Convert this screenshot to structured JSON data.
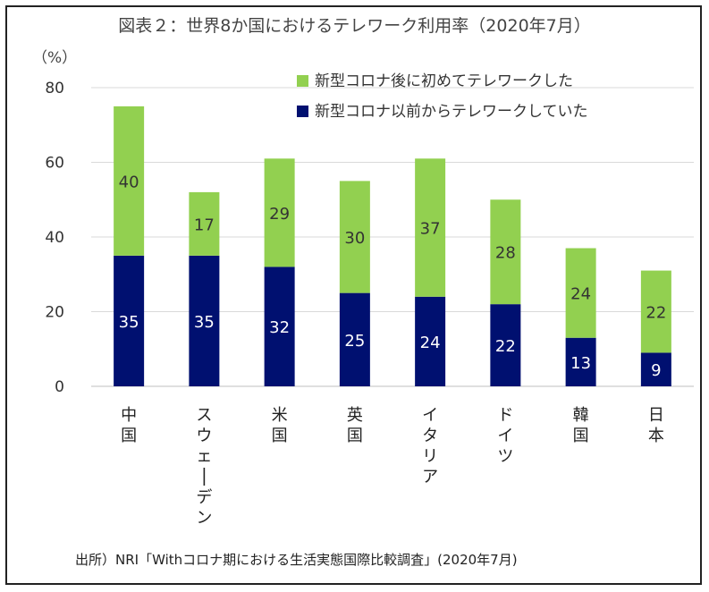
{
  "chart_data": {
    "type": "bar",
    "stacked": true,
    "title": "図表２：世界8か国におけるテレワーク利用率（2020年7月）",
    "ylabel": "（%）",
    "ylim": [
      0,
      80
    ],
    "yticks": [
      0,
      20,
      40,
      60,
      80
    ],
    "grid": true,
    "legend_position": "top-right",
    "categories": [
      "中国",
      "スウェーデン",
      "米国",
      "英国",
      "イタリア",
      "ドイツ",
      "韓国",
      "日本"
    ],
    "series": [
      {
        "name": "新型コロナ以前からテレワークしていた",
        "color": "#001070",
        "values": [
          35,
          35,
          32,
          25,
          24,
          22,
          13,
          9
        ]
      },
      {
        "name": "新型コロナ後に初めてテレワークした",
        "color": "#92d050",
        "values": [
          40,
          17,
          29,
          30,
          37,
          28,
          24,
          22
        ]
      }
    ],
    "legend_order": [
      1,
      0
    ]
  },
  "source": "出所）NRI「Withコロナ期における生活実態国際比較調査」(2020年7月)"
}
